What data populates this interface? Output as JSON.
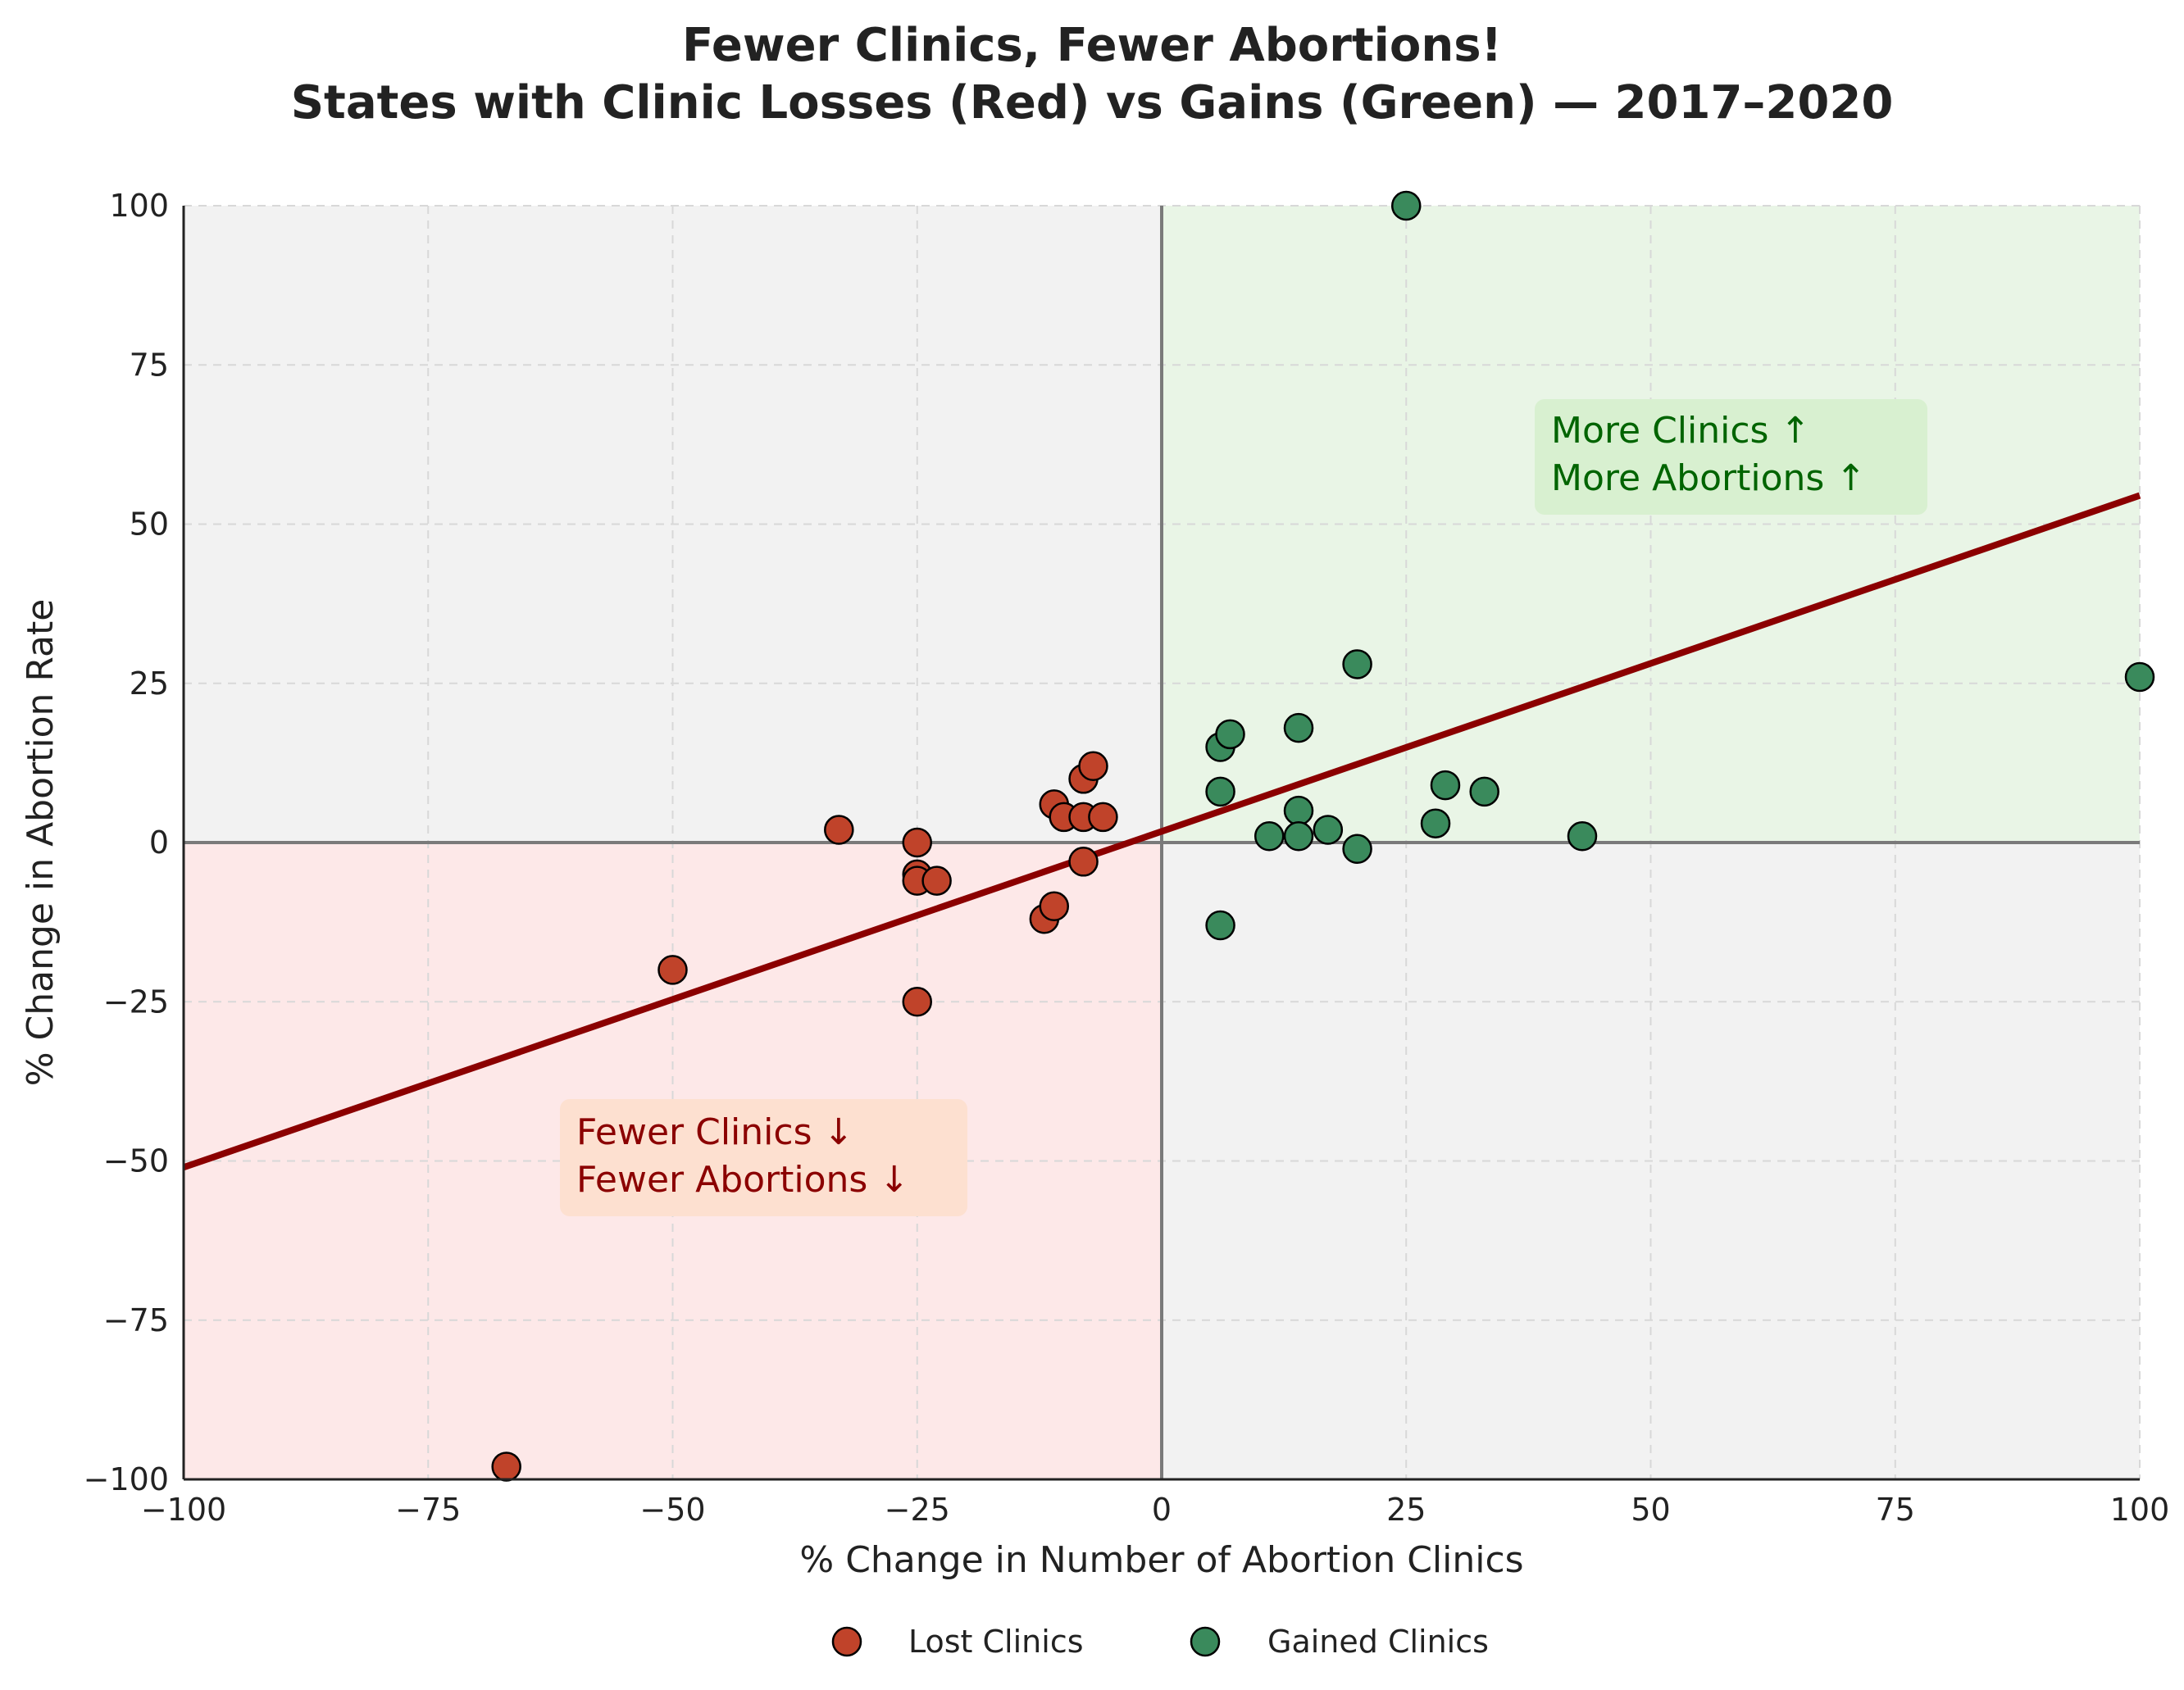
{
  "chart_data": {
    "type": "scatter",
    "title_line1": "Fewer Clinics, Fewer Abortions!",
    "title_line2": "States with Clinic Losses (Red) vs Gains (Green) — 2017–2020",
    "xlabel": "% Change in Number of Abortion Clinics",
    "ylabel": "% Change in Abortion Rate",
    "xlim": [
      -100,
      100
    ],
    "ylim": [
      -100,
      100
    ],
    "xticks": [
      -100,
      -75,
      -50,
      -25,
      0,
      25,
      50,
      75,
      100
    ],
    "yticks": [
      -100,
      -75,
      -50,
      -25,
      0,
      25,
      50,
      75,
      100
    ],
    "xtick_labels": [
      "−100",
      "−75",
      "−50",
      "−25",
      "0",
      "25",
      "50",
      "75",
      "100"
    ],
    "ytick_labels": [
      "−100",
      "−75",
      "−50",
      "−25",
      "0",
      "25",
      "50",
      "75",
      "100"
    ],
    "grid": true,
    "legend_position": "bottom-center",
    "series": [
      {
        "name": "Lost Clinics",
        "color": "#c0432a",
        "points": [
          [
            -67,
            -98
          ],
          [
            -50,
            -20
          ],
          [
            -33,
            2
          ],
          [
            -25,
            0
          ],
          [
            -25,
            -5
          ],
          [
            -25,
            -6
          ],
          [
            -25,
            -25
          ],
          [
            -23,
            -6
          ],
          [
            -12,
            -12
          ],
          [
            -11,
            -10
          ],
          [
            -11,
            6
          ],
          [
            -10,
            4
          ],
          [
            -8,
            4
          ],
          [
            -8,
            10
          ],
          [
            -8,
            -3
          ],
          [
            -7,
            12
          ],
          [
            -6,
            4
          ]
        ]
      },
      {
        "name": "Gained Clinics",
        "color": "#3a8a5c",
        "points": [
          [
            6,
            15
          ],
          [
            6,
            8
          ],
          [
            6,
            -13
          ],
          [
            7,
            17
          ],
          [
            11,
            1
          ],
          [
            14,
            18
          ],
          [
            14,
            5
          ],
          [
            14,
            1
          ],
          [
            17,
            2
          ],
          [
            20,
            28
          ],
          [
            20,
            -1
          ],
          [
            25,
            100
          ],
          [
            28,
            3
          ],
          [
            29,
            9
          ],
          [
            33,
            8
          ],
          [
            43,
            1
          ],
          [
            100,
            26
          ]
        ]
      }
    ],
    "trend_line": {
      "x1": -100,
      "y1": -51,
      "x2": 100,
      "y2": 54.5,
      "color": "#8b0000"
    },
    "annotations": [
      {
        "line1": "More Clinics ↑",
        "line2": "More Abortions ↑",
        "color": "#006400",
        "bg": "#d8f0d0"
      },
      {
        "line1": "Fewer Clinics ↓",
        "line2": "Fewer Abortions ↓",
        "color": "#8b0000",
        "bg": "#fde0d0"
      }
    ],
    "quadrant_colors": {
      "loss": "#fde8e8",
      "gain": "#e9f5e6",
      "neutral": "#f2f2f2"
    }
  }
}
